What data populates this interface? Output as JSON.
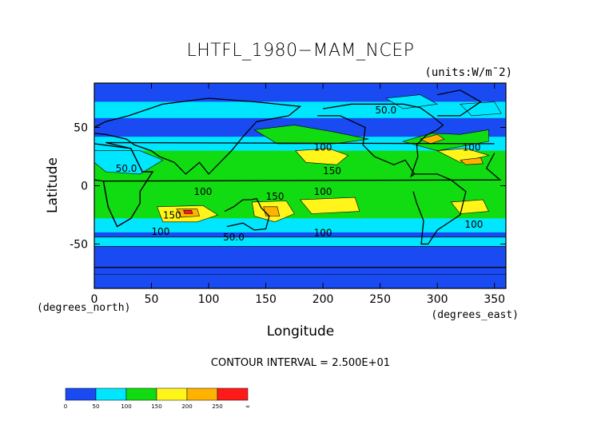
{
  "chart_data": {
    "type": "heatmap",
    "title": "LHTFL_1980−MAM_NCEP",
    "units": "(units:W/m¯2)",
    "xlabel": "Longitude",
    "ylabel": "Latitude",
    "x_unit_label": "(degrees_east)",
    "y_unit_label": "(degrees_north)",
    "xlim": [
      0,
      360
    ],
    "ylim": [
      -88,
      88
    ],
    "x_ticks": [
      0,
      50,
      100,
      150,
      200,
      250,
      300,
      350
    ],
    "y_ticks": [
      -50,
      0,
      50
    ],
    "contour_interval_text": "CONTOUR INTERVAL = 2.500E+01",
    "contour_labels": [
      {
        "text": "50.0",
        "lon": 255,
        "lat": 62
      },
      {
        "text": "100",
        "lon": 200,
        "lat": 30
      },
      {
        "text": "100",
        "lon": 330,
        "lat": 30
      },
      {
        "text": "50.0",
        "lon": 28,
        "lat": 12
      },
      {
        "text": "150",
        "lon": 208,
        "lat": 10
      },
      {
        "text": "100",
        "lon": 95,
        "lat": -8
      },
      {
        "text": "150",
        "lon": 158,
        "lat": -12
      },
      {
        "text": "100",
        "lon": 200,
        "lat": -8
      },
      {
        "text": "150",
        "lon": 68,
        "lat": -28
      },
      {
        "text": "100",
        "lon": 58,
        "lat": -42
      },
      {
        "text": "50.0",
        "lon": 122,
        "lat": -47
      },
      {
        "text": "100",
        "lon": 200,
        "lat": -43
      },
      {
        "text": "100",
        "lon": 332,
        "lat": -36
      }
    ],
    "colorbar": {
      "colors": [
        "#1a4bf2",
        "#00e6ff",
        "#11dc11",
        "#fff51a",
        "#ffb300",
        "#ff1a1a"
      ],
      "tick_labels": [
        "0",
        "50",
        "100",
        "150",
        "200",
        "250",
        "∞"
      ]
    }
  }
}
